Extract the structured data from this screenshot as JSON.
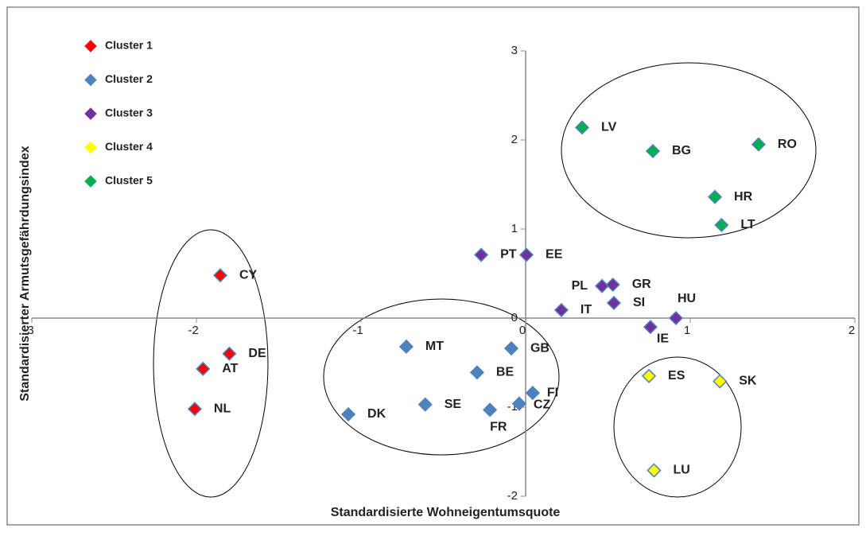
{
  "chart_data": {
    "type": "scatter",
    "xlabel": "Standardisierte Wohneigentumsquote",
    "ylabel": "Standardisierter Armutsgefährdungsindex",
    "xlim": [
      -3,
      2
    ],
    "ylim": [
      -2,
      3
    ],
    "xticks": [
      -3,
      -2,
      -1,
      0,
      1,
      2
    ],
    "yticks": [
      -2,
      -1,
      0,
      1,
      2,
      3
    ],
    "legend": "upper left",
    "marker_edge": "#4f81bd",
    "series": [
      {
        "name": "Cluster 1",
        "color": "#ff0000",
        "labels": [
          "CY",
          "DE",
          "AT",
          "NL"
        ],
        "x": [
          -1.855,
          -1.8,
          -1.96,
          -2.01
        ],
        "values": [
          0.48,
          -0.4,
          -0.57,
          -1.02
        ]
      },
      {
        "name": "Cluster 2",
        "color": "#4f81bd",
        "labels": [
          "MT",
          "GB",
          "BE",
          "FI",
          "CZ",
          "SE",
          "FR",
          "DK"
        ],
        "x": [
          -0.725,
          -0.087,
          -0.295,
          0.043,
          -0.039,
          -0.61,
          -0.217,
          -1.077
        ],
        "values": [
          -0.32,
          -0.34,
          -0.61,
          -0.84,
          -0.96,
          -0.97,
          -1.03,
          -1.08
        ]
      },
      {
        "name": "Cluster 3",
        "color": "#7030a0",
        "labels": [
          "PT",
          "EE",
          "PL",
          "GR",
          "SI",
          "IT",
          "HU",
          "IE"
        ],
        "x": [
          -0.27,
          0.005,
          0.464,
          0.53,
          0.536,
          0.217,
          0.913,
          0.758
        ],
        "values": [
          0.71,
          0.71,
          0.36,
          0.375,
          0.17,
          0.09,
          0.0,
          -0.1
        ]
      },
      {
        "name": "Cluster 4",
        "color": "#ffff00",
        "labels": [
          "ES",
          "SK",
          "LU"
        ],
        "x": [
          0.749,
          1.18,
          0.78
        ],
        "values": [
          -0.65,
          -0.71,
          -1.71
        ]
      },
      {
        "name": "Cluster 5",
        "color": "#00b050",
        "labels": [
          "LV",
          "BG",
          "RO",
          "HR",
          "LT"
        ],
        "x": [
          0.343,
          0.773,
          1.415,
          1.15,
          1.19
        ],
        "values": [
          2.14,
          1.875,
          1.95,
          1.36,
          1.045
        ]
      }
    ]
  }
}
